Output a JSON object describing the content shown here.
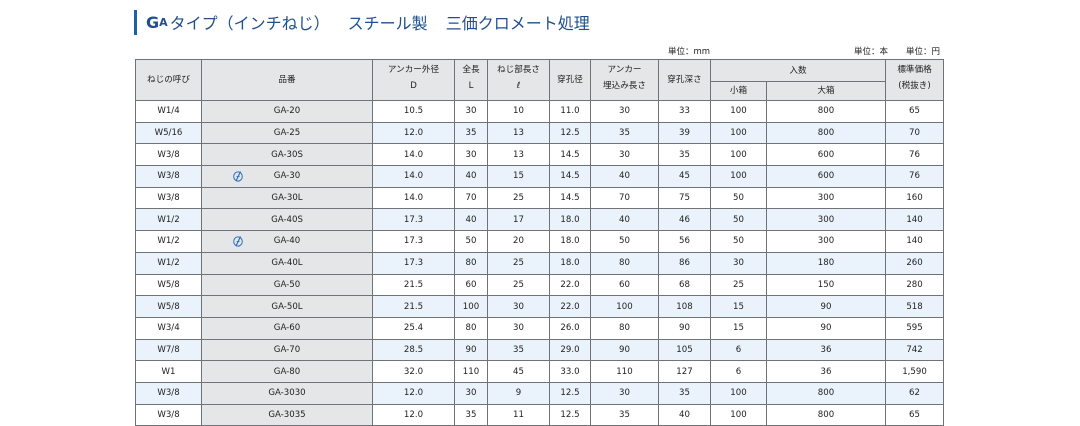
{
  "title": {
    "ga": "G",
    "ga_small": "A",
    "main": "タイプ（インチねじ）",
    "material": "スチール製",
    "finish": "三価クロメート処理"
  },
  "units": {
    "mm": "単位：mm",
    "count": "単位：本",
    "yen": "単位：円"
  },
  "headers": {
    "thread": "ねじの呼び",
    "name": "品番",
    "anchor_dia_1": "アンカー外径",
    "anchor_dia_2": "D",
    "length_1": "全長",
    "length_2": "L",
    "thread_len_1": "ねじ部長さ",
    "thread_len_2": "ℓ",
    "hole_dia": "穿孔径",
    "embed_1": "アンカー",
    "embed_2": "埋込み長さ",
    "hole_depth": "穿孔深さ",
    "quantity": "入数",
    "small_box": "小箱",
    "large_box": "大箱",
    "price_1": "標準価格",
    "price_2": "(税抜き)"
  },
  "rows": [
    {
      "thread": "W1/4",
      "name": "GA-20",
      "icon": "",
      "d": "10.5",
      "l": "30",
      "tl": "10",
      "hole": "11.0",
      "embed": "30",
      "depth": "33",
      "small": "100",
      "large": "800",
      "price": "65"
    },
    {
      "thread": "W5/16",
      "name": "GA-25",
      "icon": "",
      "d": "12.0",
      "l": "35",
      "tl": "13",
      "hole": "12.5",
      "embed": "35",
      "depth": "39",
      "small": "100",
      "large": "800",
      "price": "70"
    },
    {
      "thread": "W3/8",
      "name": "GA-30S",
      "icon": "",
      "d": "14.0",
      "l": "30",
      "tl": "13",
      "hole": "14.5",
      "embed": "30",
      "depth": "35",
      "small": "100",
      "large": "600",
      "price": "76"
    },
    {
      "thread": "W3/8",
      "name": "GA-30",
      "icon": "hand-pen-icon",
      "d": "14.0",
      "l": "40",
      "tl": "15",
      "hole": "14.5",
      "embed": "40",
      "depth": "45",
      "small": "100",
      "large": "600",
      "price": "76"
    },
    {
      "thread": "W3/8",
      "name": "GA-30L",
      "icon": "",
      "d": "14.0",
      "l": "70",
      "tl": "25",
      "hole": "14.5",
      "embed": "70",
      "depth": "75",
      "small": "50",
      "large": "300",
      "price": "160"
    },
    {
      "thread": "W1/2",
      "name": "GA-40S",
      "icon": "",
      "d": "17.3",
      "l": "40",
      "tl": "17",
      "hole": "18.0",
      "embed": "40",
      "depth": "46",
      "small": "50",
      "large": "300",
      "price": "140"
    },
    {
      "thread": "W1/2",
      "name": "GA-40",
      "icon": "hand-pen-icon",
      "d": "17.3",
      "l": "50",
      "tl": "20",
      "hole": "18.0",
      "embed": "50",
      "depth": "56",
      "small": "50",
      "large": "300",
      "price": "140"
    },
    {
      "thread": "W1/2",
      "name": "GA-40L",
      "icon": "",
      "d": "17.3",
      "l": "80",
      "tl": "25",
      "hole": "18.0",
      "embed": "80",
      "depth": "86",
      "small": "30",
      "large": "180",
      "price": "260"
    },
    {
      "thread": "W5/8",
      "name": "GA-50",
      "icon": "",
      "d": "21.5",
      "l": "60",
      "tl": "25",
      "hole": "22.0",
      "embed": "60",
      "depth": "68",
      "small": "25",
      "large": "150",
      "price": "280"
    },
    {
      "thread": "W5/8",
      "name": "GA-50L",
      "icon": "",
      "d": "21.5",
      "l": "100",
      "tl": "30",
      "hole": "22.0",
      "embed": "100",
      "depth": "108",
      "small": "15",
      "large": "90",
      "price": "518"
    },
    {
      "thread": "W3/4",
      "name": "GA-60",
      "icon": "",
      "d": "25.4",
      "l": "80",
      "tl": "30",
      "hole": "26.0",
      "embed": "80",
      "depth": "90",
      "small": "15",
      "large": "90",
      "price": "595"
    },
    {
      "thread": "W7/8",
      "name": "GA-70",
      "icon": "",
      "d": "28.5",
      "l": "90",
      "tl": "35",
      "hole": "29.0",
      "embed": "90",
      "depth": "105",
      "small": "6",
      "large": "36",
      "price": "742"
    },
    {
      "thread": "W1",
      "name": "GA-80",
      "icon": "",
      "d": "32.0",
      "l": "110",
      "tl": "45",
      "hole": "33.0",
      "embed": "110",
      "depth": "127",
      "small": "6",
      "large": "36",
      "price": "1,590"
    },
    {
      "thread": "W3/8",
      "name": "GA-3030",
      "icon": "",
      "d": "12.0",
      "l": "30",
      "tl": "9",
      "hole": "12.5",
      "embed": "30",
      "depth": "35",
      "small": "100",
      "large": "800",
      "price": "62"
    },
    {
      "thread": "W3/8",
      "name": "GA-3035",
      "icon": "",
      "d": "12.0",
      "l": "35",
      "tl": "11",
      "hole": "12.5",
      "embed": "35",
      "depth": "40",
      "small": "100",
      "large": "800",
      "price": "65"
    }
  ],
  "colors": {
    "accent": "#1f5fa8",
    "header_bg": "#e4e6e8",
    "alt_row_bg": "#eaf3fb",
    "border": "#6f7378"
  }
}
